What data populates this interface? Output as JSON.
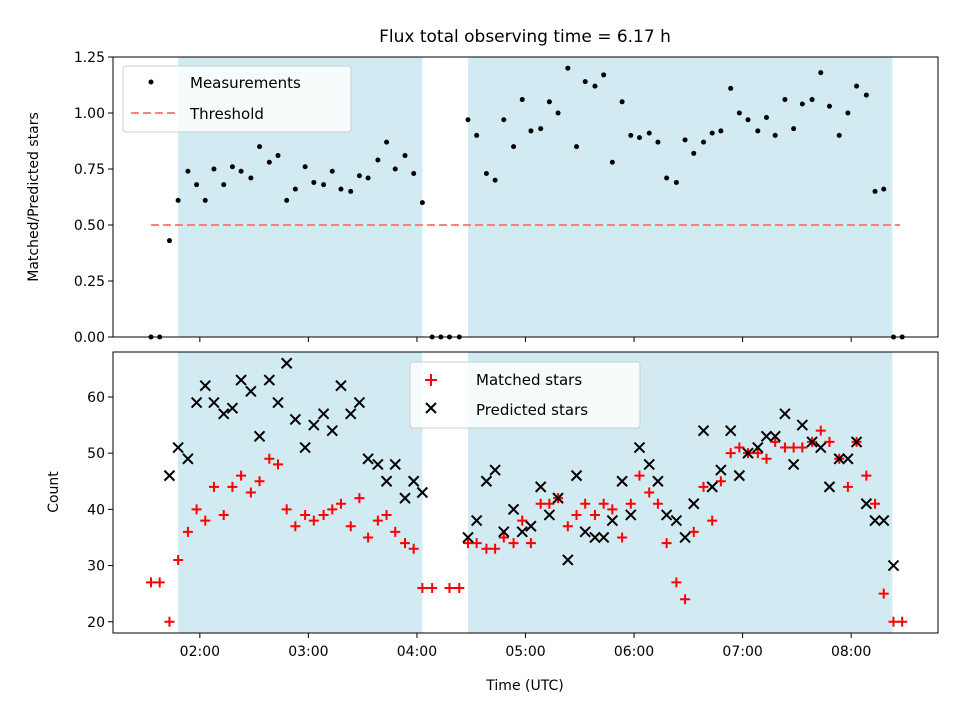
{
  "title": "Flux total observing time = 6.17 h",
  "colors": {
    "shade": "#add8e6",
    "threshold": "#ff7f7f",
    "matched": "#ff0000",
    "predicted": "#000000",
    "measurement": "#000000"
  },
  "chart_data": [
    {
      "type": "scatter",
      "ylabel": "Matched/Predicted stars",
      "xlim": [
        1.2,
        8.8
      ],
      "ylim": [
        0,
        1.25
      ],
      "yticks": [
        0,
        0.25,
        0.5,
        0.75,
        1.0,
        1.25
      ],
      "ytick_labels": [
        "0.00",
        "0.25",
        "0.50",
        "0.75",
        "1.00",
        "1.25"
      ],
      "grid": false,
      "legend_position": "top-left",
      "shaded_intervals": [
        [
          1.8,
          4.05
        ],
        [
          4.47,
          8.38
        ]
      ],
      "threshold": {
        "name": "Threshold",
        "value": 0.5,
        "x_range": [
          1.55,
          8.45
        ]
      },
      "series": [
        {
          "name": "Measurements",
          "x": [
            1.55,
            1.63,
            1.72,
            1.8,
            1.89,
            1.97,
            2.05,
            2.13,
            2.22,
            2.3,
            2.38,
            2.47,
            2.55,
            2.64,
            2.72,
            2.8,
            2.88,
            2.97,
            3.05,
            3.14,
            3.22,
            3.3,
            3.39,
            3.47,
            3.55,
            3.64,
            3.72,
            3.8,
            3.89,
            3.97,
            4.05,
            4.14,
            4.22,
            4.3,
            4.39,
            4.47,
            4.55,
            4.64,
            4.72,
            4.8,
            4.89,
            4.97,
            5.05,
            5.14,
            5.22,
            5.3,
            5.39,
            5.47,
            5.55,
            5.64,
            5.72,
            5.8,
            5.89,
            5.97,
            6.05,
            6.14,
            6.22,
            6.3,
            6.39,
            6.47,
            6.55,
            6.64,
            6.72,
            6.8,
            6.89,
            6.97,
            7.05,
            7.14,
            7.22,
            7.3,
            7.39,
            7.47,
            7.55,
            7.64,
            7.72,
            7.8,
            7.89,
            7.97,
            8.05,
            8.14,
            8.22,
            8.3,
            8.39,
            8.47
          ],
          "y": [
            0,
            0,
            0.43,
            0.61,
            0.74,
            0.68,
            0.61,
            0.75,
            0.68,
            0.76,
            0.74,
            0.71,
            0.85,
            0.78,
            0.81,
            0.61,
            0.66,
            0.76,
            0.69,
            0.68,
            0.74,
            0.66,
            0.65,
            0.72,
            0.71,
            0.79,
            0.87,
            0.75,
            0.81,
            0.73,
            0.6,
            0,
            0,
            0,
            0,
            0.97,
            0.9,
            0.73,
            0.7,
            0.97,
            0.85,
            1.06,
            0.92,
            0.93,
            1.05,
            1.0,
            1.2,
            0.85,
            1.14,
            1.12,
            1.17,
            0.78,
            1.05,
            0.9,
            0.89,
            0.91,
            0.87,
            0.71,
            0.69,
            0.88,
            0.82,
            0.87,
            0.91,
            0.92,
            1.11,
            1.0,
            0.97,
            0.92,
            0.98,
            0.9,
            1.06,
            0.93,
            1.04,
            1.06,
            1.18,
            1.03,
            0.9,
            1.0,
            1.12,
            1.08,
            0.65,
            0.66,
            0.0,
            0.0
          ]
        }
      ]
    },
    {
      "type": "scatter",
      "xlabel": "Time (UTC)",
      "ylabel": "Count",
      "xlim": [
        1.2,
        8.8
      ],
      "ylim": [
        18,
        68
      ],
      "xticks": [
        2,
        3,
        4,
        5,
        6,
        7,
        8
      ],
      "xtick_labels": [
        "02:00",
        "03:00",
        "04:00",
        "05:00",
        "06:00",
        "07:00",
        "08:00"
      ],
      "yticks": [
        20,
        30,
        40,
        50,
        60
      ],
      "ytick_labels": [
        "20",
        "30",
        "40",
        "50",
        "60"
      ],
      "grid": false,
      "legend_position": "top-center",
      "shaded_intervals": [
        [
          1.8,
          4.05
        ],
        [
          4.47,
          8.38
        ]
      ],
      "series": [
        {
          "name": "Matched stars",
          "marker": "plus",
          "x": [
            1.55,
            1.63,
            1.72,
            1.8,
            1.89,
            1.97,
            2.05,
            2.13,
            2.22,
            2.3,
            2.38,
            2.47,
            2.55,
            2.64,
            2.72,
            2.8,
            2.88,
            2.97,
            3.05,
            3.14,
            3.22,
            3.3,
            3.39,
            3.47,
            3.55,
            3.64,
            3.72,
            3.8,
            3.89,
            3.97,
            4.05,
            4.14,
            4.3,
            4.39,
            4.47,
            4.55,
            4.64,
            4.72,
            4.8,
            4.89,
            4.97,
            5.05,
            5.14,
            5.22,
            5.3,
            5.39,
            5.47,
            5.55,
            5.64,
            5.72,
            5.8,
            5.89,
            5.97,
            6.05,
            6.14,
            6.22,
            6.3,
            6.39,
            6.47,
            6.55,
            6.64,
            6.72,
            6.8,
            6.89,
            6.97,
            7.05,
            7.14,
            7.22,
            7.3,
            7.39,
            7.47,
            7.55,
            7.64,
            7.72,
            7.8,
            7.89,
            7.97,
            8.05,
            8.14,
            8.22,
            8.3,
            8.39,
            8.47
          ],
          "y": [
            27,
            27,
            20,
            31,
            36,
            40,
            38,
            44,
            39,
            44,
            46,
            43,
            45,
            49,
            48,
            40,
            37,
            39,
            38,
            39,
            40,
            41,
            37,
            42,
            35,
            38,
            39,
            36,
            34,
            33,
            26,
            26,
            26,
            26,
            34,
            34,
            33,
            33,
            35,
            34,
            38,
            34,
            41,
            41,
            42,
            37,
            39,
            41,
            39,
            41,
            40,
            35,
            41,
            46,
            43,
            41,
            34,
            27,
            24,
            36,
            44,
            38,
            45,
            50,
            51,
            50,
            50,
            49,
            52,
            51,
            51,
            51,
            52,
            54,
            52,
            49,
            44,
            52,
            46,
            41,
            25,
            20,
            20
          ]
        },
        {
          "name": "Predicted stars",
          "marker": "x",
          "x": [
            1.72,
            1.8,
            1.89,
            1.97,
            2.05,
            2.13,
            2.22,
            2.3,
            2.38,
            2.47,
            2.55,
            2.64,
            2.72,
            2.8,
            2.88,
            2.97,
            3.05,
            3.14,
            3.22,
            3.3,
            3.39,
            3.47,
            3.55,
            3.64,
            3.72,
            3.8,
            3.89,
            3.97,
            4.05,
            4.47,
            4.55,
            4.64,
            4.72,
            4.8,
            4.89,
            4.97,
            5.05,
            5.14,
            5.22,
            5.3,
            5.39,
            5.47,
            5.55,
            5.64,
            5.72,
            5.8,
            5.89,
            5.97,
            6.05,
            6.14,
            6.22,
            6.3,
            6.39,
            6.47,
            6.55,
            6.64,
            6.72,
            6.8,
            6.89,
            6.97,
            7.05,
            7.14,
            7.22,
            7.3,
            7.39,
            7.47,
            7.55,
            7.64,
            7.72,
            7.8,
            7.89,
            7.97,
            8.05,
            8.14,
            8.22,
            8.3,
            8.39
          ],
          "y": [
            46,
            51,
            49,
            59,
            62,
            59,
            57,
            58,
            63,
            61,
            53,
            63,
            59,
            66,
            56,
            51,
            55,
            57,
            54,
            62,
            57,
            59,
            49,
            48,
            45,
            48,
            42,
            45,
            43,
            35,
            38,
            45,
            47,
            36,
            40,
            36,
            37,
            44,
            39,
            42,
            31,
            46,
            36,
            35,
            35,
            38,
            45,
            39,
            51,
            48,
            45,
            39,
            38,
            35,
            41,
            54,
            44,
            47,
            54,
            46,
            50,
            51,
            53,
            53,
            57,
            48,
            55,
            52,
            51,
            44,
            49,
            49,
            52,
            41,
            38,
            38,
            30
          ]
        }
      ]
    }
  ]
}
